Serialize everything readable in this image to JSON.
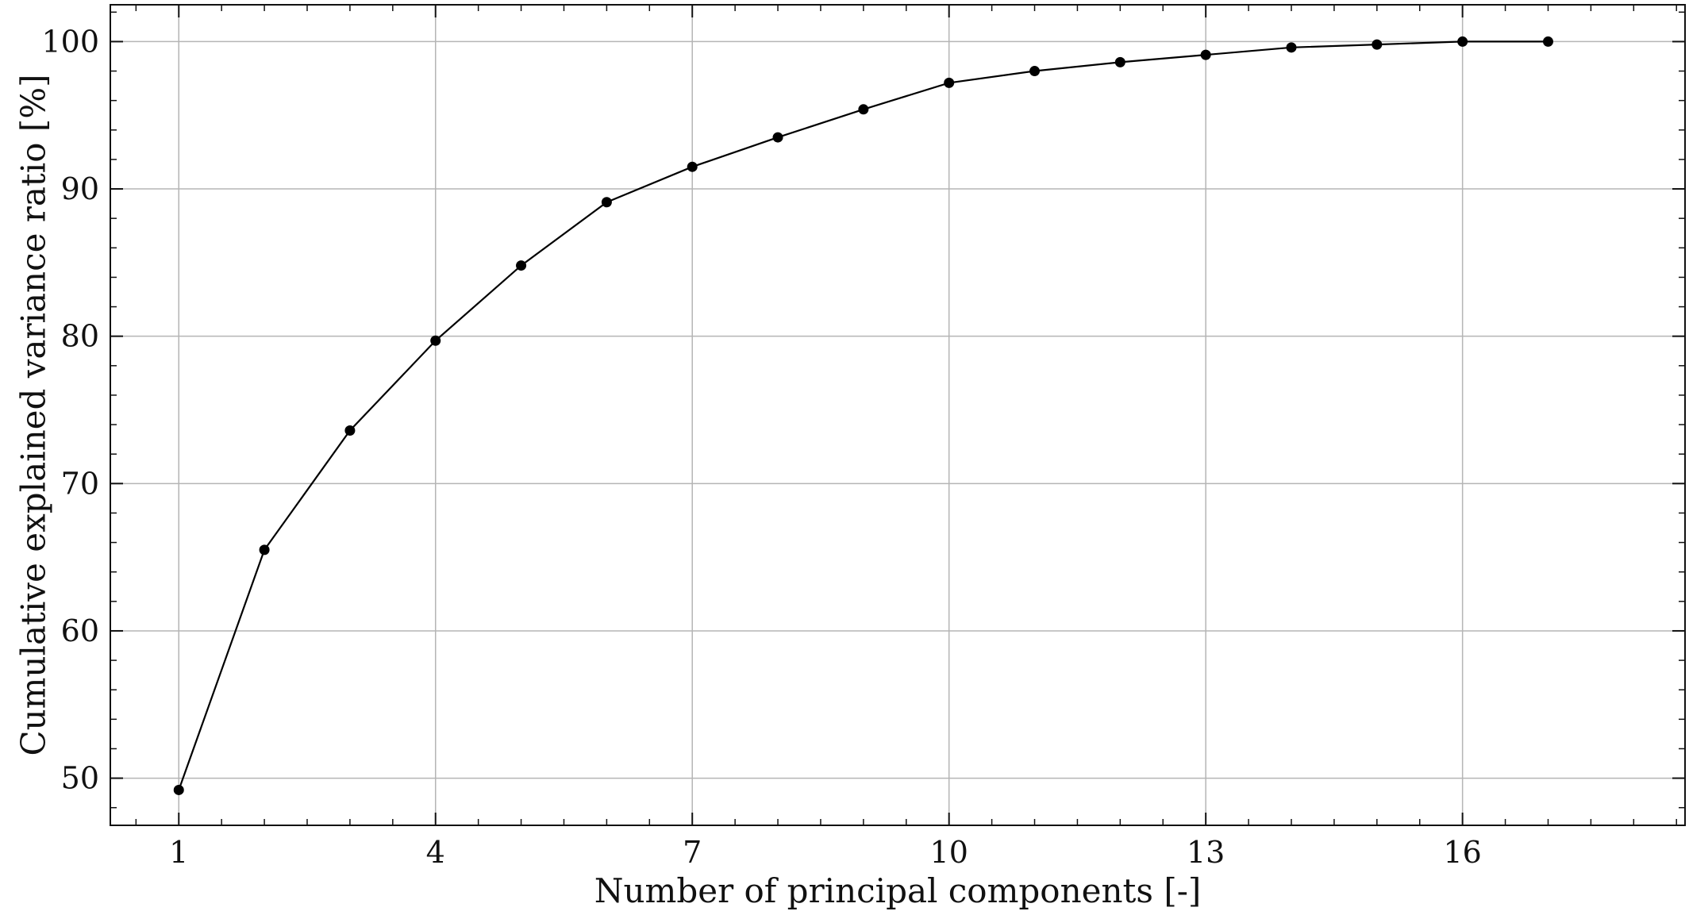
{
  "chart_data": {
    "type": "line",
    "title": "",
    "xlabel": "Number of principal components [-]",
    "ylabel": "Cumulative explained variance ratio [%]",
    "xlim": [
      0.2,
      18.6
    ],
    "ylim": [
      46.8,
      102.5
    ],
    "xticks": [
      1,
      4,
      7,
      10,
      13,
      16
    ],
    "yticks": [
      50,
      60,
      70,
      80,
      90,
      100
    ],
    "grid": true,
    "legend": "none",
    "series": [
      {
        "color": "#000000",
        "marker": "circle",
        "x": [
          1,
          2,
          3,
          4,
          5,
          6,
          7,
          8,
          9,
          10,
          11,
          12,
          13,
          14,
          15,
          16,
          17
        ],
        "y": [
          49.2,
          65.5,
          73.6,
          79.7,
          84.8,
          89.1,
          91.5,
          93.5,
          95.4,
          97.2,
          98.0,
          98.6,
          99.1,
          99.6,
          99.8,
          100.0,
          100.0
        ]
      }
    ]
  }
}
